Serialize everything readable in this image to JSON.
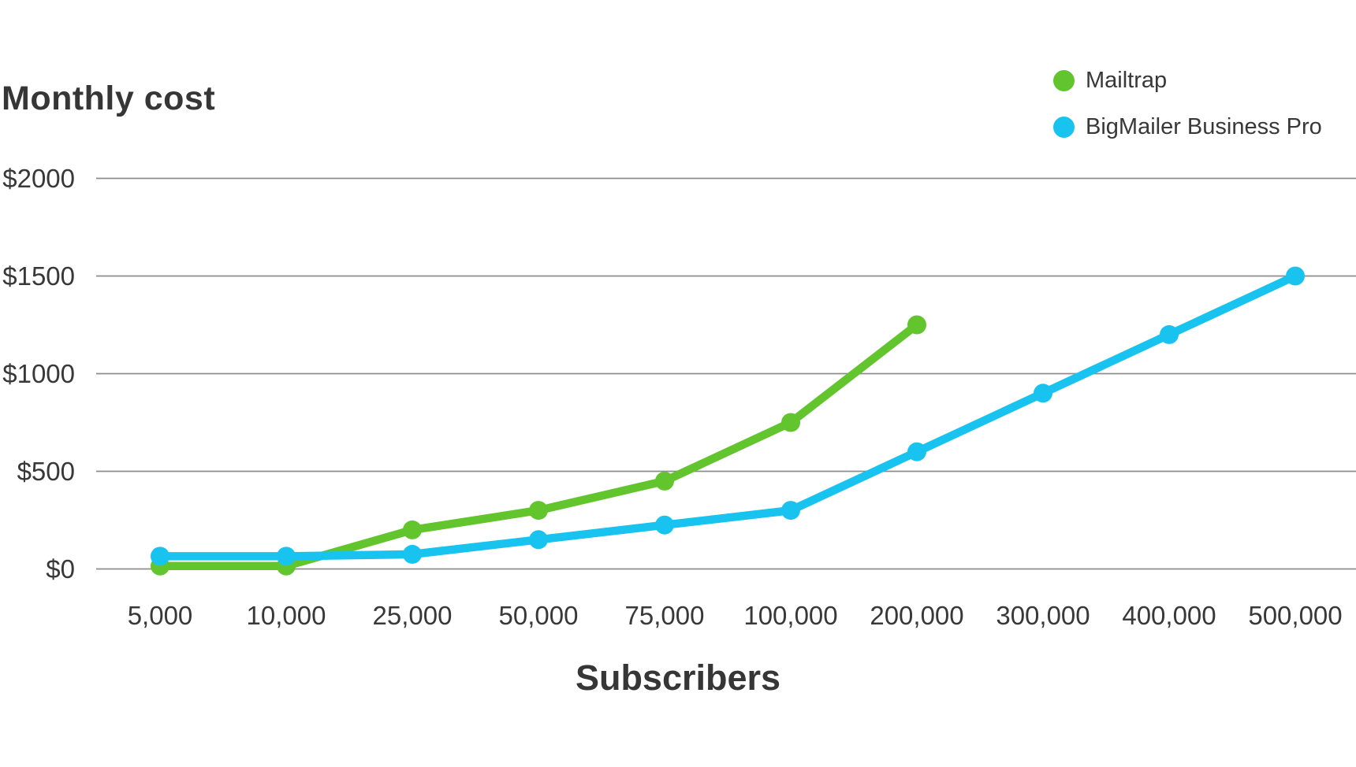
{
  "chart_data": {
    "type": "line",
    "title": "Monthly cost",
    "xlabel": "Subscribers",
    "ylabel": "",
    "categories": [
      "5,000",
      "10,000",
      "25,000",
      "50,000",
      "75,000",
      "100,000",
      "200,000",
      "300,000",
      "400,000",
      "500,000"
    ],
    "series": [
      {
        "name": "Mailtrap",
        "color": "#62C52D",
        "values": [
          15,
          15,
          200,
          300,
          450,
          750,
          1250,
          null,
          null,
          null
        ]
      },
      {
        "name": "BigMailer Business Pro",
        "color": "#18C3F0",
        "values": [
          65,
          65,
          75,
          150,
          225,
          300,
          600,
          900,
          1200,
          1500
        ]
      }
    ],
    "ylim": [
      0,
      2000
    ],
    "yticks": [
      0,
      500,
      1000,
      1500,
      2000
    ],
    "ytick_labels": [
      "$0",
      "$500",
      "$1000",
      "$1500",
      "$2000"
    ],
    "grid": "horizontal",
    "legend_position": "top-right"
  },
  "colors": {
    "text": "#383838",
    "grid": "#8c8c8c",
    "background": "#ffffff"
  }
}
